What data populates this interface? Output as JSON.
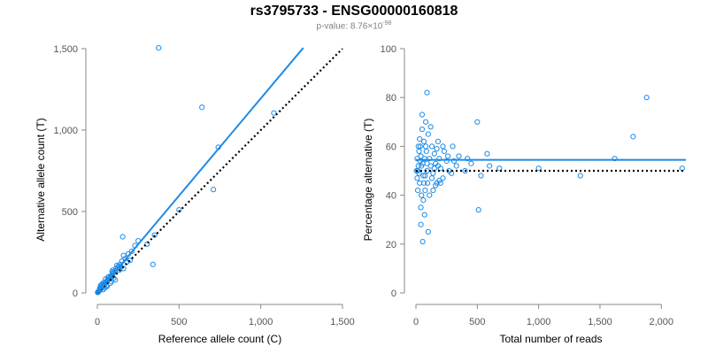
{
  "title": "rs3795733 - ENSG00000160818",
  "subtitle": {
    "prefix": "p-value: 8.76",
    "times": "×",
    "base": "10",
    "exponent": "-98"
  },
  "colors": {
    "points": "#1e8be6",
    "fit_line": "#1e8be6",
    "reference_line": "#000000",
    "axis": "#888888"
  },
  "chart_data": [
    {
      "type": "scatter",
      "name": "allele-counts",
      "xlabel": "Reference allele count (C)",
      "ylabel": "Alternative allele count (T)",
      "xlim": [
        0,
        1500
      ],
      "ylim": [
        0,
        1500
      ],
      "xticks": [
        0,
        500,
        1000,
        1500
      ],
      "xtick_labels": [
        "0",
        "500",
        "1,000",
        "1,500"
      ],
      "yticks": [
        0,
        500,
        1000,
        1500
      ],
      "ytick_labels": [
        "0",
        "500",
        "1,000",
        "1,500"
      ],
      "fit_line": {
        "from": [
          0,
          0
        ],
        "to": [
          1260,
          1505
        ],
        "style": "solid"
      },
      "reference_line": {
        "from": [
          0,
          0
        ],
        "to": [
          1500,
          1500
        ],
        "style": "dotted"
      },
      "points": [
        [
          375,
          1505
        ],
        [
          640,
          1140
        ],
        [
          740,
          895
        ],
        [
          1080,
          1105
        ],
        [
          710,
          635
        ],
        [
          500,
          510
        ],
        [
          340,
          175
        ],
        [
          155,
          345
        ],
        [
          350,
          355
        ],
        [
          305,
          300
        ],
        [
          250,
          320
        ],
        [
          230,
          290
        ],
        [
          210,
          255
        ],
        [
          190,
          240
        ],
        [
          170,
          210
        ],
        [
          160,
          230
        ],
        [
          150,
          195
        ],
        [
          140,
          175
        ],
        [
          130,
          165
        ],
        [
          125,
          155
        ],
        [
          115,
          150
        ],
        [
          110,
          135
        ],
        [
          100,
          125
        ],
        [
          95,
          120
        ],
        [
          90,
          110
        ],
        [
          85,
          100
        ],
        [
          80,
          95
        ],
        [
          75,
          90
        ],
        [
          70,
          85
        ],
        [
          65,
          80
        ],
        [
          60,
          75
        ],
        [
          58,
          68
        ],
        [
          55,
          70
        ],
        [
          50,
          62
        ],
        [
          48,
          58
        ],
        [
          45,
          55
        ],
        [
          42,
          50
        ],
        [
          40,
          52
        ],
        [
          38,
          45
        ],
        [
          35,
          44
        ],
        [
          33,
          40
        ],
        [
          30,
          38
        ],
        [
          28,
          35
        ],
        [
          26,
          30
        ],
        [
          25,
          32
        ],
        [
          22,
          28
        ],
        [
          20,
          25
        ],
        [
          18,
          22
        ],
        [
          16,
          20
        ],
        [
          15,
          18
        ],
        [
          14,
          16
        ],
        [
          12,
          15
        ],
        [
          10,
          13
        ],
        [
          9,
          11
        ],
        [
          8,
          10
        ],
        [
          7,
          9
        ],
        [
          6,
          8
        ],
        [
          5,
          6
        ],
        [
          4,
          5
        ],
        [
          3,
          4
        ],
        [
          2,
          3
        ],
        [
          20,
          45
        ],
        [
          30,
          55
        ],
        [
          45,
          30
        ],
        [
          60,
          40
        ],
        [
          70,
          100
        ],
        [
          80,
          60
        ],
        [
          95,
          140
        ],
        [
          110,
          80
        ],
        [
          120,
          170
        ],
        [
          135,
          140
        ],
        [
          145,
          160
        ],
        [
          160,
          150
        ],
        [
          180,
          190
        ],
        [
          200,
          200
        ],
        [
          90,
          130
        ],
        [
          100,
          90
        ],
        [
          65,
          95
        ],
        [
          55,
          45
        ],
        [
          40,
          65
        ],
        [
          25,
          50
        ],
        [
          35,
          20
        ],
        [
          15,
          30
        ],
        [
          50,
          85
        ],
        [
          85,
          70
        ]
      ]
    },
    {
      "type": "scatter",
      "name": "percentage-alternative",
      "xlabel": "Total number of reads",
      "ylabel": "Percentage alternative (T)",
      "xlim": [
        0,
        2200
      ],
      "ylim": [
        0,
        100
      ],
      "xticks": [
        0,
        500,
        1000,
        1500,
        2000
      ],
      "xtick_labels": [
        "0",
        "500",
        "1,000",
        "1,500",
        "2,000"
      ],
      "yticks": [
        0,
        20,
        40,
        60,
        80,
        100
      ],
      "ytick_labels": [
        "0",
        "20",
        "40",
        "60",
        "80",
        "100"
      ],
      "fit_line": {
        "from": [
          0,
          54.5
        ],
        "to": [
          2200,
          54.5
        ],
        "style": "solid"
      },
      "reference_line": {
        "from": [
          0,
          50
        ],
        "to": [
          2200,
          50
        ],
        "style": "dotted"
      },
      "points": [
        [
          1880,
          80
        ],
        [
          1770,
          64
        ],
        [
          2170,
          51
        ],
        [
          1620,
          55
        ],
        [
          1340,
          48
        ],
        [
          1000,
          51
        ],
        [
          680,
          51
        ],
        [
          600,
          52
        ],
        [
          580,
          57
        ],
        [
          500,
          70
        ],
        [
          510,
          34
        ],
        [
          530,
          48
        ],
        [
          450,
          53
        ],
        [
          420,
          55
        ],
        [
          400,
          50
        ],
        [
          350,
          56
        ],
        [
          330,
          52
        ],
        [
          300,
          60
        ],
        [
          270,
          50
        ],
        [
          250,
          54
        ],
        [
          230,
          58
        ],
        [
          220,
          47
        ],
        [
          200,
          51
        ],
        [
          190,
          55
        ],
        [
          180,
          62
        ],
        [
          170,
          45
        ],
        [
          160,
          53
        ],
        [
          150,
          57
        ],
        [
          140,
          49
        ],
        [
          130,
          60
        ],
        [
          120,
          52
        ],
        [
          110,
          55
        ],
        [
          100,
          65
        ],
        [
          95,
          45
        ],
        [
          90,
          50
        ],
        [
          85,
          58
        ],
        [
          80,
          70
        ],
        [
          75,
          42
        ],
        [
          70,
          55
        ],
        [
          65,
          62
        ],
        [
          60,
          48
        ],
        [
          55,
          53
        ],
        [
          50,
          67
        ],
        [
          45,
          40
        ],
        [
          40,
          56
        ],
        [
          35,
          60
        ],
        [
          30,
          45
        ],
        [
          25,
          58
        ],
        [
          20,
          52
        ],
        [
          15,
          50
        ],
        [
          10,
          47
        ],
        [
          50,
          73
        ],
        [
          60,
          38
        ],
        [
          70,
          32
        ],
        [
          40,
          28
        ],
        [
          55,
          21
        ],
        [
          90,
          82
        ],
        [
          100,
          25
        ],
        [
          40,
          35
        ],
        [
          30,
          63
        ],
        [
          120,
          68
        ],
        [
          140,
          42
        ],
        [
          160,
          44
        ],
        [
          110,
          40
        ],
        [
          80,
          60
        ],
        [
          90,
          53
        ],
        [
          75,
          48
        ],
        [
          65,
          45
        ],
        [
          45,
          52
        ],
        [
          35,
          54
        ],
        [
          25,
          49
        ],
        [
          20,
          60
        ],
        [
          15,
          42
        ],
        [
          10,
          55
        ],
        [
          5,
          50
        ],
        [
          200,
          45
        ],
        [
          220,
          60
        ],
        [
          260,
          56
        ],
        [
          290,
          49
        ],
        [
          310,
          54
        ],
        [
          130,
          47
        ],
        [
          150,
          51
        ],
        [
          170,
          59
        ],
        [
          180,
          52
        ],
        [
          190,
          46
        ]
      ]
    }
  ]
}
